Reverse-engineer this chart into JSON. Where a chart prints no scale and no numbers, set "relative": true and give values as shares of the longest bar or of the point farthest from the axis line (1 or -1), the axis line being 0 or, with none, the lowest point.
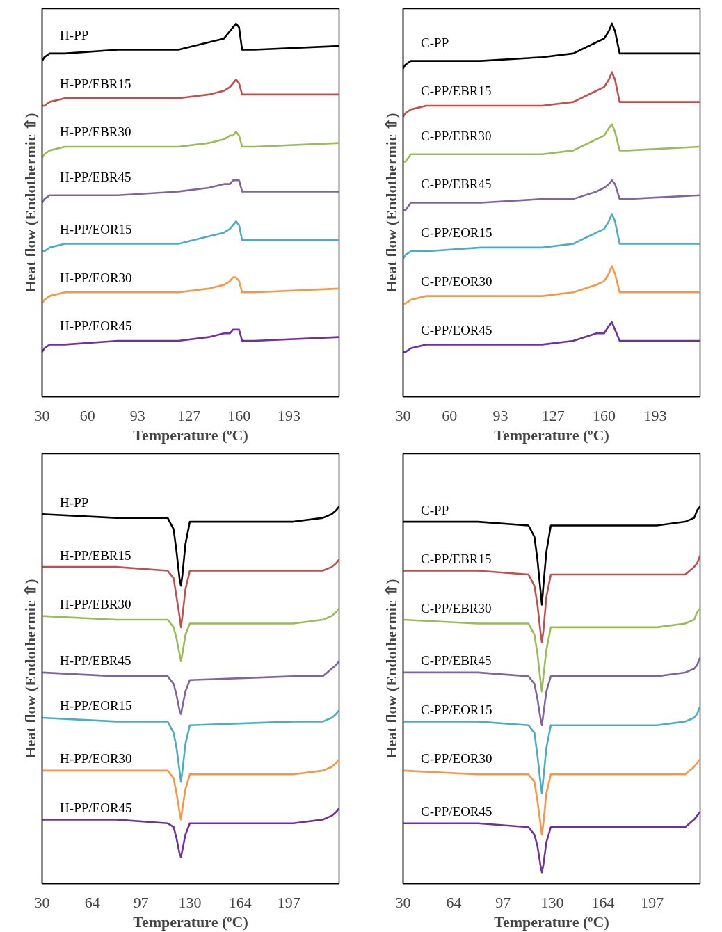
{
  "chart_data": [
    {
      "type": "line",
      "relative": true,
      "xlabel": "Temperature (ºC)",
      "ylabel": "Heat flow (Endothermic ⇧)",
      "xlim": [
        30,
        226
      ],
      "xticks": [
        30,
        60,
        93,
        127,
        160,
        193
      ],
      "x": [
        30,
        31.5,
        35,
        45,
        80,
        120,
        140,
        150,
        154,
        156,
        158,
        160,
        162,
        170,
        226
      ],
      "series": [
        {
          "name": "H-PP",
          "color": "#000000",
          "values": [
            0.9,
            0.91,
            0.92,
            0.92,
            0.93,
            0.93,
            0.95,
            0.96,
            0.98,
            0.99,
            1.0,
            0.99,
            0.93,
            0.93,
            0.94
          ]
        },
        {
          "name": "H-PP/EBR15",
          "color": "#c0504d",
          "values": [
            0.78,
            0.78,
            0.79,
            0.8,
            0.8,
            0.8,
            0.81,
            0.82,
            0.83,
            0.84,
            0.85,
            0.84,
            0.81,
            0.81,
            0.81
          ]
        },
        {
          "name": "H-PP/EBR30",
          "color": "#9bbb59",
          "values": [
            0.64,
            0.65,
            0.66,
            0.67,
            0.67,
            0.67,
            0.68,
            0.69,
            0.7,
            0.7,
            0.71,
            0.7,
            0.67,
            0.67,
            0.68
          ]
        },
        {
          "name": "H-PP/EBR45",
          "color": "#8064a2",
          "values": [
            0.52,
            0.53,
            0.54,
            0.54,
            0.54,
            0.55,
            0.56,
            0.57,
            0.57,
            0.58,
            0.58,
            0.58,
            0.55,
            0.55,
            0.55
          ]
        },
        {
          "name": "H-PP/EOR15",
          "color": "#4bacc6",
          "values": [
            0.39,
            0.39,
            0.4,
            0.41,
            0.41,
            0.41,
            0.43,
            0.44,
            0.45,
            0.46,
            0.47,
            0.46,
            0.42,
            0.42,
            0.42
          ]
        },
        {
          "name": "H-PP/EOR30",
          "color": "#f79646",
          "values": [
            0.25,
            0.26,
            0.27,
            0.28,
            0.28,
            0.28,
            0.29,
            0.3,
            0.31,
            0.32,
            0.32,
            0.31,
            0.28,
            0.28,
            0.29
          ]
        },
        {
          "name": "H-PP/EOR45",
          "color": "#7030a0",
          "values": [
            0.12,
            0.13,
            0.14,
            0.14,
            0.15,
            0.15,
            0.16,
            0.17,
            0.17,
            0.18,
            0.18,
            0.18,
            0.15,
            0.15,
            0.16
          ]
        }
      ]
    },
    {
      "type": "line",
      "relative": true,
      "xlabel": "Temperature (ºC)",
      "ylabel": "Heat flow (Endothermic ⇧)",
      "xlim": [
        30,
        222
      ],
      "xticks": [
        30,
        60,
        93,
        127,
        160,
        193
      ],
      "x": [
        30,
        31.5,
        35,
        45,
        80,
        120,
        140,
        155,
        160,
        163,
        165,
        167,
        170,
        175,
        222
      ],
      "series": [
        {
          "name": "C-PP",
          "color": "#000000",
          "values": [
            0.88,
            0.89,
            0.9,
            0.9,
            0.9,
            0.91,
            0.92,
            0.95,
            0.96,
            0.98,
            1.0,
            0.98,
            0.92,
            0.92,
            0.92
          ]
        },
        {
          "name": "C-PP/EBR15",
          "color": "#c0504d",
          "values": [
            0.75,
            0.76,
            0.77,
            0.78,
            0.78,
            0.78,
            0.79,
            0.82,
            0.83,
            0.85,
            0.87,
            0.85,
            0.79,
            0.79,
            0.79
          ]
        },
        {
          "name": "C-PP/EBR30",
          "color": "#9bbb59",
          "values": [
            0.63,
            0.63,
            0.65,
            0.65,
            0.65,
            0.65,
            0.66,
            0.69,
            0.7,
            0.72,
            0.73,
            0.71,
            0.66,
            0.66,
            0.67
          ]
        },
        {
          "name": "C-PP/EBR45",
          "color": "#8064a2",
          "values": [
            0.5,
            0.5,
            0.52,
            0.52,
            0.52,
            0.53,
            0.53,
            0.55,
            0.56,
            0.57,
            0.58,
            0.57,
            0.53,
            0.53,
            0.54
          ]
        },
        {
          "name": "C-PP/EOR15",
          "color": "#4bacc6",
          "values": [
            0.37,
            0.38,
            0.39,
            0.39,
            0.4,
            0.4,
            0.41,
            0.44,
            0.45,
            0.47,
            0.49,
            0.47,
            0.41,
            0.41,
            0.41
          ]
        },
        {
          "name": "C-PP/EOR30",
          "color": "#f79646",
          "values": [
            0.25,
            0.25,
            0.26,
            0.27,
            0.27,
            0.27,
            0.28,
            0.3,
            0.31,
            0.33,
            0.35,
            0.33,
            0.28,
            0.28,
            0.28
          ]
        },
        {
          "name": "C-PP/EOR45",
          "color": "#7030a0",
          "values": [
            0.12,
            0.12,
            0.13,
            0.14,
            0.14,
            0.14,
            0.15,
            0.17,
            0.17,
            0.19,
            0.2,
            0.18,
            0.15,
            0.15,
            0.15
          ]
        }
      ]
    },
    {
      "type": "line",
      "relative": true,
      "xlabel": "Temperature (ºC)",
      "ylabel": "Heat flow (Endothermic ⇧)",
      "xlim": [
        30,
        231
      ],
      "xticks": [
        30,
        64,
        97,
        130,
        164,
        197
      ],
      "x": [
        30,
        80,
        115,
        119,
        121,
        123,
        124,
        125,
        127,
        130,
        200,
        220,
        226,
        229,
        231
      ],
      "series": [
        {
          "name": "H-PP",
          "color": "#000000",
          "values": [
            0.98,
            0.97,
            0.97,
            0.94,
            0.88,
            0.81,
            0.79,
            0.82,
            0.9,
            0.96,
            0.96,
            0.97,
            0.98,
            0.99,
            1.0
          ]
        },
        {
          "name": "H-PP/EBR15",
          "color": "#c0504d",
          "values": [
            0.84,
            0.84,
            0.83,
            0.81,
            0.76,
            0.71,
            0.68,
            0.71,
            0.78,
            0.83,
            0.83,
            0.83,
            0.84,
            0.85,
            0.86
          ]
        },
        {
          "name": "H-PP/EBR30",
          "color": "#9bbb59",
          "values": [
            0.71,
            0.7,
            0.7,
            0.68,
            0.65,
            0.61,
            0.59,
            0.61,
            0.66,
            0.69,
            0.69,
            0.7,
            0.71,
            0.72,
            0.73
          ]
        },
        {
          "name": "H-PP/EBR45",
          "color": "#8064a2",
          "values": [
            0.56,
            0.55,
            0.55,
            0.53,
            0.5,
            0.46,
            0.45,
            0.47,
            0.51,
            0.54,
            0.55,
            0.55,
            0.57,
            0.58,
            0.59
          ]
        },
        {
          "name": "H-PP/EOR15",
          "color": "#4bacc6",
          "values": [
            0.44,
            0.43,
            0.43,
            0.4,
            0.36,
            0.3,
            0.27,
            0.3,
            0.37,
            0.42,
            0.43,
            0.43,
            0.44,
            0.45,
            0.46
          ]
        },
        {
          "name": "H-PP/EOR30",
          "color": "#f79646",
          "values": [
            0.3,
            0.3,
            0.3,
            0.28,
            0.24,
            0.19,
            0.17,
            0.2,
            0.25,
            0.29,
            0.29,
            0.3,
            0.31,
            0.32,
            0.33
          ]
        },
        {
          "name": "H-PP/EOR45",
          "color": "#7030a0",
          "values": [
            0.17,
            0.17,
            0.16,
            0.15,
            0.12,
            0.08,
            0.07,
            0.09,
            0.13,
            0.16,
            0.16,
            0.17,
            0.18,
            0.19,
            0.2
          ]
        }
      ]
    },
    {
      "type": "line",
      "relative": true,
      "xlabel": "Temperature (ºC)",
      "ylabel": "Heat flow (Endothermic ⇧)",
      "xlim": [
        30,
        229
      ],
      "xticks": [
        30,
        64,
        97,
        130,
        164,
        197
      ],
      "x": [
        30,
        80,
        114,
        118,
        120,
        122,
        123,
        124,
        126,
        129,
        200,
        219,
        225,
        227,
        229
      ],
      "series": [
        {
          "name": "C-PP",
          "color": "#000000",
          "values": [
            0.96,
            0.96,
            0.95,
            0.92,
            0.86,
            0.78,
            0.74,
            0.79,
            0.88,
            0.95,
            0.95,
            0.96,
            0.97,
            0.99,
            1.0
          ]
        },
        {
          "name": "C-PP/EBR15",
          "color": "#c0504d",
          "values": [
            0.83,
            0.83,
            0.82,
            0.79,
            0.74,
            0.67,
            0.64,
            0.67,
            0.76,
            0.82,
            0.82,
            0.82,
            0.84,
            0.85,
            0.87
          ]
        },
        {
          "name": "C-PP/EBR30",
          "color": "#9bbb59",
          "values": [
            0.7,
            0.69,
            0.69,
            0.66,
            0.61,
            0.54,
            0.51,
            0.55,
            0.62,
            0.68,
            0.68,
            0.69,
            0.7,
            0.72,
            0.73
          ]
        },
        {
          "name": "C-PP/EBR45",
          "color": "#8064a2",
          "values": [
            0.56,
            0.56,
            0.55,
            0.53,
            0.49,
            0.44,
            0.42,
            0.45,
            0.51,
            0.55,
            0.55,
            0.56,
            0.57,
            0.58,
            0.6
          ]
        },
        {
          "name": "C-PP/EOR15",
          "color": "#4bacc6",
          "values": [
            0.43,
            0.43,
            0.42,
            0.4,
            0.34,
            0.27,
            0.24,
            0.28,
            0.36,
            0.42,
            0.42,
            0.43,
            0.44,
            0.45,
            0.47
          ]
        },
        {
          "name": "C-PP/EOR30",
          "color": "#f79646",
          "values": [
            0.3,
            0.29,
            0.29,
            0.27,
            0.22,
            0.16,
            0.13,
            0.16,
            0.24,
            0.29,
            0.29,
            0.29,
            0.31,
            0.32,
            0.33
          ]
        },
        {
          "name": "C-PP/EOR45",
          "color": "#7030a0",
          "values": [
            0.16,
            0.16,
            0.15,
            0.13,
            0.1,
            0.05,
            0.03,
            0.05,
            0.11,
            0.15,
            0.15,
            0.15,
            0.17,
            0.18,
            0.19
          ]
        }
      ]
    }
  ]
}
